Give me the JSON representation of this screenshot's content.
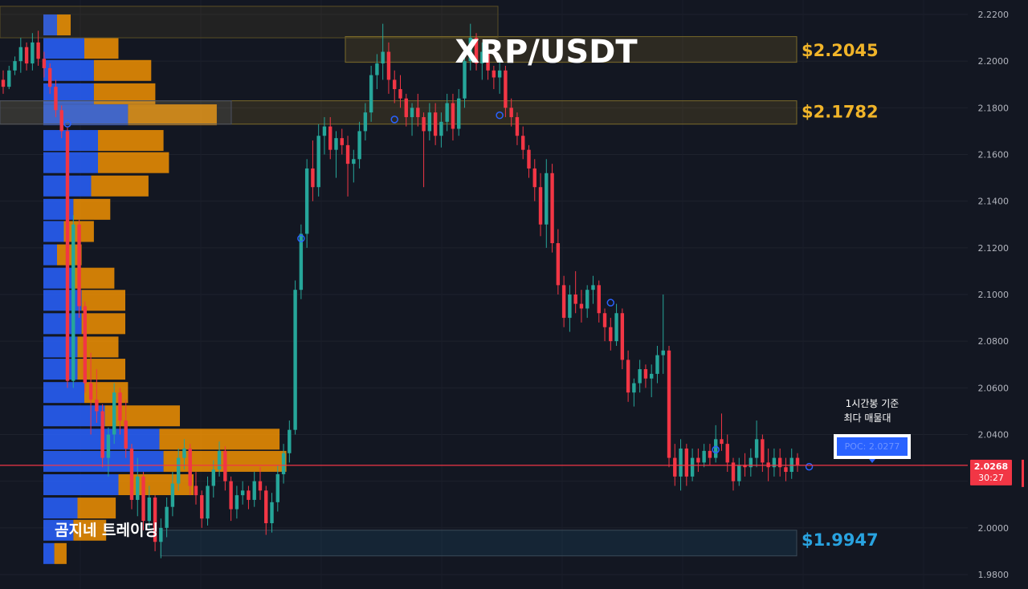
{
  "chart_data": {
    "type": "candlestick",
    "title": "XRP/USDT",
    "pair": "XRP/USDT",
    "ylim": [
      1.978,
      2.2235
    ],
    "y_ticks": [
      "2.2200",
      "2.2000",
      "2.1800",
      "2.1600",
      "2.1400",
      "2.1200",
      "2.1000",
      "2.0800",
      "2.0600",
      "2.0400",
      "2.0200",
      "2.0000",
      "1.9800"
    ],
    "current_price": {
      "value": 2.0268,
      "label": "2.0268",
      "countdown": "30:27",
      "color": "#f23645"
    },
    "levels": [
      {
        "price": 2.2045,
        "label": "$2.2045",
        "color": "#f0b429",
        "zone": [
          2.1995,
          2.2105
        ]
      },
      {
        "price": 2.1782,
        "label": "$2.1782",
        "color": "#f0b429",
        "zone": [
          2.173,
          2.183
        ]
      },
      {
        "price": 1.9947,
        "label": "$1.9947",
        "color": "#29a3e0",
        "zone": [
          1.988,
          1.999
        ]
      }
    ],
    "poc": {
      "value": 2.0277,
      "label": "POC: 2.0277",
      "note_line1": "1시간봉 기준",
      "note_line2": "최다 매물대"
    },
    "watermark": "곰지네 트레이딩",
    "volume_profile": {
      "buy_color": "#2962ff",
      "sell_color": "#ff9800",
      "rows": [
        {
          "price": 2.2155,
          "buy": 0.1,
          "sell": 0.1
        },
        {
          "price": 2.2055,
          "buy": 0.3,
          "sell": 0.25
        },
        {
          "price": 2.196,
          "buy": 0.37,
          "sell": 0.42
        },
        {
          "price": 2.186,
          "buy": 0.37,
          "sell": 0.45
        },
        {
          "price": 2.177,
          "buy": 0.62,
          "sell": 0.65
        },
        {
          "price": 2.166,
          "buy": 0.4,
          "sell": 0.48
        },
        {
          "price": 2.1565,
          "buy": 0.4,
          "sell": 0.52
        },
        {
          "price": 2.1465,
          "buy": 0.35,
          "sell": 0.42
        },
        {
          "price": 2.1365,
          "buy": 0.22,
          "sell": 0.27
        },
        {
          "price": 2.127,
          "buy": 0.15,
          "sell": 0.22
        },
        {
          "price": 2.117,
          "buy": 0.1,
          "sell": 0.18
        },
        {
          "price": 2.107,
          "buy": 0.22,
          "sell": 0.3
        },
        {
          "price": 2.0975,
          "buy": 0.28,
          "sell": 0.32
        },
        {
          "price": 2.0875,
          "buy": 0.28,
          "sell": 0.32
        },
        {
          "price": 2.0775,
          "buy": 0.25,
          "sell": 0.3
        },
        {
          "price": 2.068,
          "buy": 0.25,
          "sell": 0.35
        },
        {
          "price": 2.058,
          "buy": 0.3,
          "sell": 0.32
        },
        {
          "price": 2.048,
          "buy": 0.45,
          "sell": 0.55
        },
        {
          "price": 2.038,
          "buy": 0.85,
          "sell": 0.88
        },
        {
          "price": 2.0285,
          "buy": 0.88,
          "sell": 0.9
        },
        {
          "price": 2.0185,
          "buy": 0.55,
          "sell": 0.55
        },
        {
          "price": 2.0085,
          "buy": 0.25,
          "sell": 0.28
        },
        {
          "price": 1.999,
          "buy": 0.22,
          "sell": 0.24
        },
        {
          "price": 1.989,
          "buy": 0.08,
          "sell": 0.09
        }
      ]
    },
    "candles": [
      [
        2.192,
        2.196,
        2.186,
        2.189
      ],
      [
        2.189,
        2.198,
        2.188,
        2.196
      ],
      [
        2.196,
        2.202,
        2.194,
        2.2
      ],
      [
        2.2,
        2.21,
        2.195,
        2.206
      ],
      [
        2.206,
        2.208,
        2.196,
        2.199
      ],
      [
        2.199,
        2.212,
        2.196,
        2.208
      ],
      [
        2.208,
        2.213,
        2.198,
        2.201
      ],
      [
        2.201,
        2.204,
        2.193,
        2.197
      ],
      [
        2.197,
        2.199,
        2.186,
        2.189
      ],
      [
        2.189,
        2.192,
        2.176,
        2.179
      ],
      [
        2.179,
        2.181,
        2.167,
        2.17
      ],
      [
        2.17,
        2.172,
        2.06,
        2.063
      ],
      [
        2.063,
        2.134,
        2.06,
        2.13
      ],
      [
        2.13,
        2.132,
        2.09,
        2.095
      ],
      [
        2.095,
        2.097,
        2.058,
        2.062
      ],
      [
        2.062,
        2.075,
        2.04,
        2.055
      ],
      [
        2.055,
        2.068,
        2.045,
        2.05
      ],
      [
        2.05,
        2.053,
        2.026,
        2.03
      ],
      [
        2.03,
        2.043,
        2.022,
        2.04
      ],
      [
        2.04,
        2.062,
        2.036,
        2.058
      ],
      [
        2.058,
        2.06,
        2.04,
        2.046
      ],
      [
        2.046,
        2.055,
        2.03,
        2.034
      ],
      [
        2.034,
        2.036,
        2.008,
        2.012
      ],
      [
        2.012,
        2.03,
        2.005,
        2.022
      ],
      [
        2.022,
        2.024,
        1.999,
        2.003
      ],
      [
        2.003,
        2.018,
        2.0,
        2.013
      ],
      [
        2.013,
        2.014,
        1.99,
        1.994
      ],
      [
        1.994,
        2.004,
        1.987,
        2.0
      ],
      [
        2.0,
        2.013,
        1.996,
        2.009
      ],
      [
        2.009,
        2.024,
        2.005,
        2.019
      ],
      [
        2.019,
        2.034,
        2.016,
        2.03
      ],
      [
        2.03,
        2.038,
        2.025,
        2.034
      ],
      [
        2.034,
        2.036,
        2.014,
        2.018
      ],
      [
        2.018,
        2.024,
        2.01,
        2.014
      ],
      [
        2.014,
        2.016,
        2.0,
        2.004
      ],
      [
        2.004,
        2.022,
        2.001,
        2.018
      ],
      [
        2.018,
        2.029,
        2.013,
        2.025
      ],
      [
        2.025,
        2.037,
        2.022,
        2.033
      ],
      [
        2.033,
        2.035,
        2.016,
        2.02
      ],
      [
        2.02,
        2.022,
        2.003,
        2.008
      ],
      [
        2.008,
        2.018,
        2.004,
        2.014
      ],
      [
        2.014,
        2.02,
        2.01,
        2.016
      ],
      [
        2.016,
        2.018,
        2.008,
        2.012
      ],
      [
        2.012,
        2.024,
        2.009,
        2.02
      ],
      [
        2.02,
        2.026,
        2.012,
        2.016
      ],
      [
        2.016,
        2.018,
        1.997,
        2.002
      ],
      [
        2.002,
        2.015,
        1.998,
        2.011
      ],
      [
        2.011,
        2.027,
        2.007,
        2.023
      ],
      [
        2.023,
        2.036,
        2.019,
        2.032
      ],
      [
        2.032,
        2.046,
        2.028,
        2.042
      ],
      [
        2.042,
        2.106,
        2.04,
        2.102
      ],
      [
        2.102,
        2.13,
        2.098,
        2.126
      ],
      [
        2.126,
        2.158,
        2.12,
        2.154
      ],
      [
        2.154,
        2.166,
        2.14,
        2.146
      ],
      [
        2.146,
        2.173,
        2.142,
        2.168
      ],
      [
        2.168,
        2.176,
        2.16,
        2.172
      ],
      [
        2.172,
        2.176,
        2.158,
        2.162
      ],
      [
        2.162,
        2.17,
        2.15,
        2.167
      ],
      [
        2.167,
        2.171,
        2.16,
        2.164
      ],
      [
        2.164,
        2.168,
        2.142,
        2.156
      ],
      [
        2.156,
        2.162,
        2.148,
        2.158
      ],
      [
        2.158,
        2.174,
        2.154,
        2.17
      ],
      [
        2.17,
        2.182,
        2.166,
        2.178
      ],
      [
        2.178,
        2.198,
        2.174,
        2.194
      ],
      [
        2.194,
        2.203,
        2.188,
        2.199
      ],
      [
        2.199,
        2.216,
        2.192,
        2.204
      ],
      [
        2.204,
        2.208,
        2.186,
        2.192
      ],
      [
        2.192,
        2.196,
        2.182,
        2.188
      ],
      [
        2.188,
        2.194,
        2.18,
        2.184
      ],
      [
        2.184,
        2.186,
        2.172,
        2.176
      ],
      [
        2.176,
        2.182,
        2.168,
        2.18
      ],
      [
        2.18,
        2.186,
        2.172,
        2.176
      ],
      [
        2.176,
        2.178,
        2.146,
        2.17
      ],
      [
        2.17,
        2.182,
        2.166,
        2.178
      ],
      [
        2.178,
        2.182,
        2.164,
        2.168
      ],
      [
        2.168,
        2.178,
        2.163,
        2.174
      ],
      [
        2.174,
        2.186,
        2.17,
        2.182
      ],
      [
        2.182,
        2.186,
        2.166,
        2.171
      ],
      [
        2.171,
        2.188,
        2.168,
        2.184
      ],
      [
        2.184,
        2.204,
        2.18,
        2.2
      ],
      [
        2.2,
        2.216,
        2.196,
        2.21
      ],
      [
        2.21,
        2.212,
        2.196,
        2.199
      ],
      [
        2.199,
        2.208,
        2.192,
        2.204
      ],
      [
        2.204,
        2.206,
        2.192,
        2.196
      ],
      [
        2.196,
        2.198,
        2.188,
        2.193
      ],
      [
        2.193,
        2.2,
        2.186,
        2.196
      ],
      [
        2.196,
        2.198,
        2.176,
        2.18
      ],
      [
        2.18,
        2.184,
        2.172,
        2.176
      ],
      [
        2.176,
        2.178,
        2.164,
        2.168
      ],
      [
        2.168,
        2.172,
        2.158,
        2.162
      ],
      [
        2.162,
        2.164,
        2.15,
        2.154
      ],
      [
        2.154,
        2.158,
        2.14,
        2.146
      ],
      [
        2.146,
        2.152,
        2.125,
        2.13
      ],
      [
        2.13,
        2.158,
        2.12,
        2.152
      ],
      [
        2.152,
        2.156,
        2.118,
        2.122
      ],
      [
        2.122,
        2.128,
        2.1,
        2.104
      ],
      [
        2.104,
        2.108,
        2.086,
        2.09
      ],
      [
        2.09,
        2.104,
        2.084,
        2.1
      ],
      [
        2.1,
        2.11,
        2.092,
        2.096
      ],
      [
        2.096,
        2.102,
        2.088,
        2.094
      ],
      [
        2.094,
        2.104,
        2.09,
        2.102
      ],
      [
        2.102,
        2.108,
        2.096,
        2.104
      ],
      [
        2.104,
        2.106,
        2.088,
        2.092
      ],
      [
        2.092,
        2.094,
        2.08,
        2.086
      ],
      [
        2.086,
        2.09,
        2.076,
        2.08
      ],
      [
        2.08,
        2.096,
        2.078,
        2.092
      ],
      [
        2.092,
        2.094,
        2.068,
        2.072
      ],
      [
        2.072,
        2.076,
        2.054,
        2.058
      ],
      [
        2.058,
        2.064,
        2.052,
        2.062
      ],
      [
        2.062,
        2.072,
        2.058,
        2.068
      ],
      [
        2.068,
        2.07,
        2.06,
        2.064
      ],
      [
        2.064,
        2.07,
        2.056,
        2.066
      ],
      [
        2.066,
        2.078,
        2.062,
        2.074
      ],
      [
        2.074,
        2.1,
        2.066,
        2.076
      ],
      [
        2.076,
        2.078,
        2.026,
        2.03
      ],
      [
        2.03,
        2.036,
        2.018,
        2.022
      ],
      [
        2.022,
        2.038,
        2.016,
        2.034
      ],
      [
        2.034,
        2.036,
        2.018,
        2.022
      ],
      [
        2.022,
        2.034,
        2.02,
        2.03
      ],
      [
        2.03,
        2.034,
        2.024,
        2.028
      ],
      [
        2.028,
        2.036,
        2.026,
        2.033
      ],
      [
        2.033,
        2.036,
        2.027,
        2.03
      ],
      [
        2.03,
        2.044,
        2.028,
        2.038
      ],
      [
        2.038,
        2.049,
        2.033,
        2.036
      ],
      [
        2.036,
        2.04,
        2.024,
        2.028
      ],
      [
        2.028,
        2.03,
        2.016,
        2.02
      ],
      [
        2.02,
        2.03,
        2.018,
        2.027
      ],
      [
        2.027,
        2.032,
        2.022,
        2.026
      ],
      [
        2.026,
        2.034,
        2.022,
        2.03
      ],
      [
        2.03,
        2.046,
        2.026,
        2.038
      ],
      [
        2.038,
        2.04,
        2.024,
        2.028
      ],
      [
        2.028,
        2.034,
        2.02,
        2.026
      ],
      [
        2.026,
        2.034,
        2.022,
        2.03
      ],
      [
        2.03,
        2.034,
        2.022,
        2.026
      ],
      [
        2.026,
        2.03,
        2.02,
        2.024
      ],
      [
        2.024,
        2.034,
        2.021,
        2.03
      ],
      [
        2.03,
        2.032,
        2.024,
        2.027
      ]
    ]
  }
}
